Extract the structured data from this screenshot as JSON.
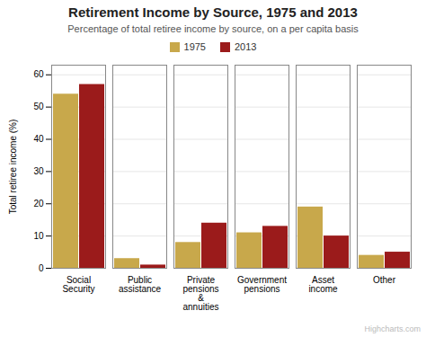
{
  "chart_data": {
    "type": "bar",
    "title": "Retirement Income by Source, 1975 and 2013",
    "subtitle": "Percentage of total retiree income by source, on a per capita basis",
    "categories": [
      "Social\nSecurity",
      "Public\nassistance",
      "Private\npensions\n&\nannuities",
      "Government\npensions",
      "Asset\nincome",
      "Other"
    ],
    "series": [
      {
        "name": "1975",
        "color": "#C8A84B",
        "values": [
          54,
          3,
          8,
          11,
          19,
          4
        ]
      },
      {
        "name": "2013",
        "color": "#9B1B1B",
        "values": [
          57,
          1,
          14,
          13,
          10,
          5
        ]
      }
    ],
    "ylabel": "Total retiree income (%)",
    "ylim": [
      0,
      63
    ],
    "yticks": [
      0,
      10,
      20,
      30,
      40,
      50,
      60
    ],
    "grid": true,
    "legend": "top",
    "annotations": [
      "Highcharts.com"
    ]
  }
}
